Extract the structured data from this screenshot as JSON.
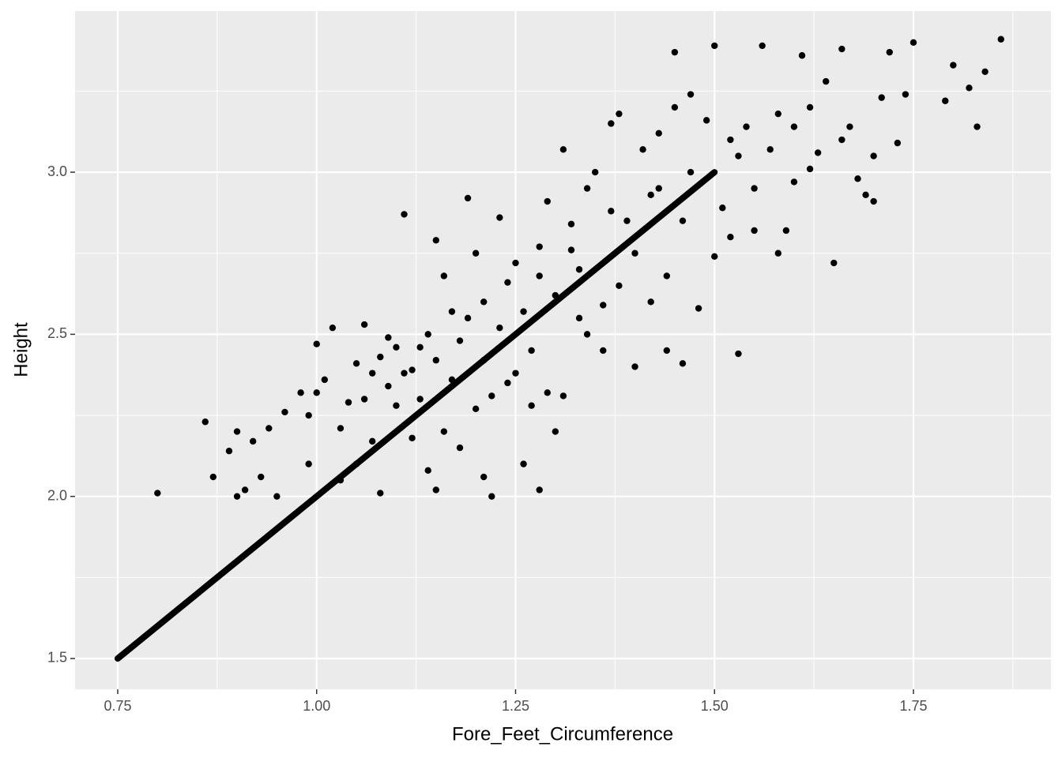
{
  "chart_data": {
    "type": "scatter",
    "x_label": "Fore_Feet_Circumference",
    "y_label": "Height",
    "xlim": [
      0.6964,
      1.9228
    ],
    "ylim": [
      1.405,
      3.497
    ],
    "xticks": [
      {
        "value": 0.75,
        "label": "0.75"
      },
      {
        "value": 1.0,
        "label": "1.00"
      },
      {
        "value": 1.25,
        "label": "1.25"
      },
      {
        "value": 1.5,
        "label": "1.50"
      },
      {
        "value": 1.75,
        "label": "1.75"
      }
    ],
    "yticks": [
      1.5,
      {
        "value": 2.0,
        "label": "2.0"
      },
      2.5,
      {
        "value": 3.0,
        "label": "3.0"
      }
    ],
    "grid": true,
    "series": [
      {
        "mark": "point",
        "color": "#000000",
        "x": [
          0.8,
          0.86,
          0.87,
          0.89,
          0.9,
          0.9,
          0.91,
          0.92,
          0.93,
          0.94,
          0.95,
          0.96,
          0.98,
          0.99,
          1.0,
          0.99,
          1.0,
          1.01,
          1.02,
          1.03,
          1.04,
          1.05,
          1.06,
          1.06,
          1.07,
          1.08,
          1.08,
          1.09,
          1.1,
          1.11,
          1.12,
          1.13,
          1.14,
          1.15,
          1.15,
          1.16,
          1.17,
          1.18,
          1.19,
          1.2,
          1.21,
          1.21,
          1.22,
          1.23,
          1.24,
          1.25,
          1.26,
          1.27,
          1.28,
          1.28,
          1.29,
          1.3,
          1.31,
          1.31,
          1.32,
          1.33,
          1.34,
          1.35,
          1.36,
          1.37,
          1.38,
          1.39,
          1.4,
          1.41,
          1.42,
          1.43,
          1.44,
          1.45,
          1.45,
          1.46,
          1.47,
          1.48,
          1.49,
          1.5,
          1.51,
          1.52,
          1.53,
          1.54,
          1.55,
          1.56,
          1.57,
          1.58,
          1.59,
          1.6,
          1.61,
          1.62,
          1.63,
          1.64,
          1.65,
          1.66,
          1.67,
          1.68,
          1.69,
          1.7,
          1.71,
          1.72,
          1.73,
          1.74,
          1.75,
          1.79,
          1.8,
          1.82,
          1.83,
          1.84,
          1.86,
          1.44,
          1.42,
          1.36,
          1.34,
          1.3,
          1.29,
          1.27,
          1.24,
          1.22,
          1.2,
          1.18,
          1.16,
          1.14,
          1.12,
          1.1,
          1.07,
          1.05,
          1.03,
          1.5,
          1.52,
          1.55,
          1.58,
          1.6,
          1.46,
          1.4,
          1.38,
          1.33,
          1.26,
          1.25,
          1.21,
          1.19,
          1.17,
          1.13,
          1.09,
          1.37,
          1.43,
          1.47,
          1.53,
          1.62,
          1.66,
          1.7,
          1.28,
          1.32,
          1.23,
          1.15,
          1.11
        ],
        "values": [
          2.01,
          2.23,
          2.06,
          2.14,
          2.2,
          2.0,
          2.02,
          2.17,
          2.06,
          2.21,
          2.0,
          2.26,
          2.32,
          2.25,
          2.32,
          2.1,
          2.47,
          2.36,
          2.52,
          2.21,
          2.29,
          2.41,
          2.53,
          2.3,
          2.38,
          2.43,
          2.01,
          2.49,
          2.46,
          2.87,
          2.39,
          2.46,
          2.5,
          2.79,
          2.02,
          2.68,
          2.57,
          2.48,
          2.92,
          2.75,
          2.6,
          2.06,
          2.0,
          2.86,
          2.66,
          2.72,
          2.1,
          2.45,
          2.02,
          2.77,
          2.91,
          2.62,
          3.07,
          2.31,
          2.84,
          2.7,
          2.95,
          3.0,
          2.59,
          3.15,
          3.18,
          2.85,
          2.4,
          3.07,
          2.93,
          3.12,
          2.45,
          3.37,
          3.2,
          2.41,
          3.24,
          2.58,
          3.16,
          3.39,
          2.89,
          3.1,
          2.44,
          3.14,
          2.95,
          3.39,
          3.07,
          3.18,
          2.82,
          3.14,
          3.36,
          3.2,
          3.06,
          3.28,
          2.72,
          3.38,
          3.14,
          2.98,
          2.93,
          2.91,
          3.23,
          3.37,
          3.09,
          3.24,
          3.4,
          3.22,
          3.33,
          3.26,
          3.14,
          3.31,
          3.41,
          2.68,
          2.6,
          2.45,
          2.5,
          2.2,
          2.32,
          2.28,
          2.35,
          2.31,
          2.27,
          2.15,
          2.2,
          2.08,
          2.18,
          2.28,
          2.17,
          2.1,
          2.05,
          2.74,
          2.8,
          2.82,
          2.75,
          2.97,
          2.85,
          2.75,
          2.65,
          2.55,
          2.57,
          2.38,
          2.42,
          2.55,
          2.36,
          2.3,
          2.34,
          2.88,
          2.95,
          3.0,
          3.05,
          3.01,
          3.1,
          3.05,
          2.68,
          2.76,
          2.52,
          2.42,
          2.38
        ]
      },
      {
        "mark": "line",
        "color": "#000000",
        "x": [
          0.75,
          1.5
        ],
        "values": [
          1.5,
          3.0
        ]
      }
    ]
  }
}
